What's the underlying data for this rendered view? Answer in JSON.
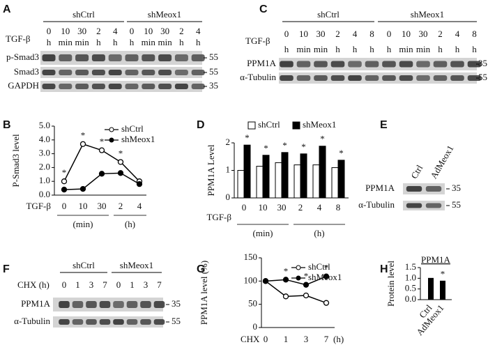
{
  "figure": {
    "panel_labels": [
      "A",
      "B",
      "C",
      "D",
      "E",
      "F",
      "G",
      "H"
    ]
  },
  "blots": [
    {
      "groups": [
        "shCtrl",
        "shMeox1"
      ],
      "treatment": "TGF-β",
      "lanes": [
        [
          "0",
          "h"
        ],
        [
          "10",
          "min"
        ],
        [
          "30",
          "min"
        ],
        [
          "2",
          "h"
        ],
        [
          "4",
          "h"
        ],
        [
          "0",
          "h"
        ],
        [
          "10",
          "min"
        ],
        [
          "30",
          "min"
        ],
        [
          "2",
          "h"
        ],
        [
          "4",
          "h"
        ]
      ],
      "rows": [
        {
          "name": "p-Smad3",
          "marker": "55"
        },
        {
          "name": "Smad3",
          "marker": "55"
        },
        {
          "name": "GAPDH",
          "marker": "35"
        }
      ]
    },
    {
      "groups": [
        "shCtrl",
        "shMeox1"
      ],
      "treatment": "TGF-β",
      "lanes": [
        [
          "0",
          "h"
        ],
        [
          "10",
          "min"
        ],
        [
          "30",
          "min"
        ],
        [
          "2",
          "h"
        ],
        [
          "4",
          "h"
        ],
        [
          "8",
          "h"
        ],
        [
          "0",
          "h"
        ],
        [
          "10",
          "min"
        ],
        [
          "30",
          "min"
        ],
        [
          "2",
          "h"
        ],
        [
          "4",
          "h"
        ],
        [
          "8",
          "h"
        ]
      ],
      "rows": [
        {
          "name": "PPM1A",
          "marker": "35"
        },
        {
          "name": "α-Tubulin",
          "marker": "55"
        }
      ]
    },
    {
      "groups": [
        "shCtrl",
        "shMeox1"
      ],
      "treatment": "CHX (h)",
      "lanes": [
        [
          "0"
        ],
        [
          "1"
        ],
        [
          "3"
        ],
        [
          "7"
        ],
        [
          "0"
        ],
        [
          "1"
        ],
        [
          "3"
        ],
        [
          "7"
        ]
      ],
      "rows": [
        {
          "name": "PPM1A",
          "marker": "35"
        },
        {
          "name": "α-Tubulin",
          "marker": "55"
        }
      ]
    },
    {
      "lanes": [
        [
          "Ctrl"
        ],
        [
          "AdMeox1"
        ]
      ],
      "rows": [
        {
          "name": "PPM1A",
          "marker": "35"
        },
        {
          "name": "α-Tubulin",
          "marker": "55"
        }
      ]
    }
  ],
  "chart_data": [
    {
      "type": "line",
      "ylabel": "P-Smad3 level",
      "xlabel": "TGF-β",
      "categories": [
        "0",
        "10",
        "30",
        "2",
        "4"
      ],
      "group_labels": [
        "(min)",
        "(h)"
      ],
      "ylim": [
        0,
        5
      ],
      "yticks": [
        {
          "value": 0,
          "label": "0.0"
        },
        {
          "value": 1,
          "label": "1.0"
        },
        {
          "value": 2,
          "label": "2.0"
        },
        {
          "value": 3,
          "label": "3.0"
        },
        {
          "value": 4,
          "label": "4.0"
        },
        {
          "value": 5,
          "label": "5.0"
        }
      ],
      "series": [
        {
          "name": "shCtrl",
          "color": "#000000",
          "marker_fill": "#ffffff",
          "values": [
            1.0,
            3.7,
            3.25,
            2.4,
            1.0
          ],
          "significance": [
            "*",
            "*",
            "*",
            "*",
            null
          ]
        },
        {
          "name": "shMeox1",
          "color": "#000000",
          "marker_fill": "#000000",
          "values": [
            0.4,
            0.45,
            1.55,
            1.6,
            0.8
          ]
        }
      ]
    },
    {
      "type": "bar",
      "ylabel": "PPM1A Level",
      "xlabel": "TGF-β",
      "categories": [
        "0",
        "10",
        "30",
        "2",
        "4",
        "8"
      ],
      "group_labels": [
        "(min)",
        "(h)"
      ],
      "ylim": [
        0,
        2
      ],
      "yticks": [
        0,
        1,
        2
      ],
      "series": [
        {
          "name": "shCtrl",
          "color": "#ffffff",
          "values": [
            1.0,
            1.15,
            1.28,
            1.2,
            1.2,
            1.1
          ]
        },
        {
          "name": "shMeox1",
          "color": "#000000",
          "values": [
            1.92,
            1.55,
            1.65,
            1.6,
            1.88,
            1.37
          ],
          "significance": [
            "*",
            "*",
            "*",
            "*",
            "*",
            "*"
          ]
        }
      ]
    },
    {
      "type": "line",
      "ylabel": "PPM1A level (%)",
      "xlabel": "CHX",
      "xunit": "(h)",
      "categories": [
        "0",
        "1",
        "3",
        "7"
      ],
      "ylim": [
        0,
        150
      ],
      "yticks": [
        0,
        50,
        100,
        150
      ],
      "series": [
        {
          "name": "shCtrl",
          "color": "#000000",
          "marker_fill": "#ffffff",
          "values": [
            100,
            67,
            69,
            53
          ]
        },
        {
          "name": "shMeox1",
          "color": "#000000",
          "marker_fill": "#000000",
          "values": [
            100,
            103,
            92,
            110
          ],
          "significance": [
            null,
            "*",
            "*",
            "*"
          ]
        }
      ]
    },
    {
      "type": "bar",
      "title": "PPM1A",
      "ylabel": "Protein level",
      "categories": [
        "Ctrl",
        "AdMeox1"
      ],
      "values": [
        1.0,
        0.87
      ],
      "color": "#000000",
      "significance": [
        null,
        "*"
      ],
      "ylim": [
        0,
        1.5
      ],
      "yticks": [
        {
          "value": 0,
          "label": "0.0"
        },
        {
          "value": 0.5,
          "label": "0.5"
        },
        {
          "value": 1,
          "label": "1.0"
        },
        {
          "value": 1.5,
          "label": "1.5"
        }
      ]
    }
  ]
}
